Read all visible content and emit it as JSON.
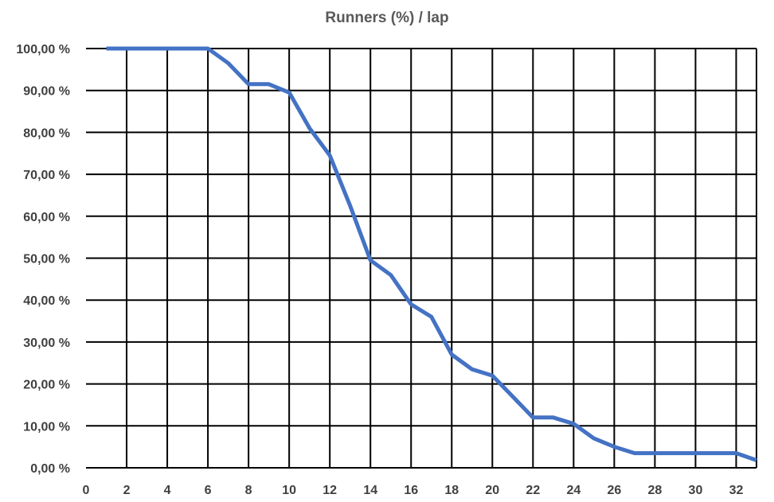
{
  "chart_data": {
    "type": "line",
    "title": "Runners (%) / lap",
    "xlabel": "",
    "ylabel": "",
    "xlim": [
      0,
      33
    ],
    "ylim": [
      0,
      100
    ],
    "grid": true,
    "line_color": "#4472C4",
    "grid_color": "#000000",
    "x_ticks": [
      "0",
      "2",
      "4",
      "6",
      "8",
      "10",
      "12",
      "14",
      "16",
      "18",
      "20",
      "22",
      "24",
      "26",
      "28",
      "30",
      "32"
    ],
    "y_ticks": [
      "0,00 %",
      "10,00 %",
      "20,00 %",
      "30,00 %",
      "40,00 %",
      "50,00 %",
      "60,00 %",
      "70,00 %",
      "80,00 %",
      "90,00 %",
      "100,00 %"
    ],
    "series": [
      {
        "x": [
          1,
          2,
          3,
          4,
          5,
          6,
          7,
          8,
          9,
          10,
          11,
          12,
          13,
          14,
          15,
          16,
          17,
          18,
          19,
          20,
          21,
          22,
          23,
          24,
          25,
          26,
          27,
          28,
          29,
          30,
          31,
          32,
          33
        ],
        "values": [
          100,
          100,
          100,
          100,
          100,
          100,
          96.5,
          91.5,
          91.5,
          89.5,
          81,
          74.5,
          62.5,
          49.5,
          46,
          39,
          36,
          27,
          23.5,
          22,
          17,
          12,
          12,
          10.5,
          7,
          5,
          3.5,
          3.5,
          3.5,
          3.5,
          3.5,
          3.5,
          1.8
        ]
      }
    ]
  }
}
